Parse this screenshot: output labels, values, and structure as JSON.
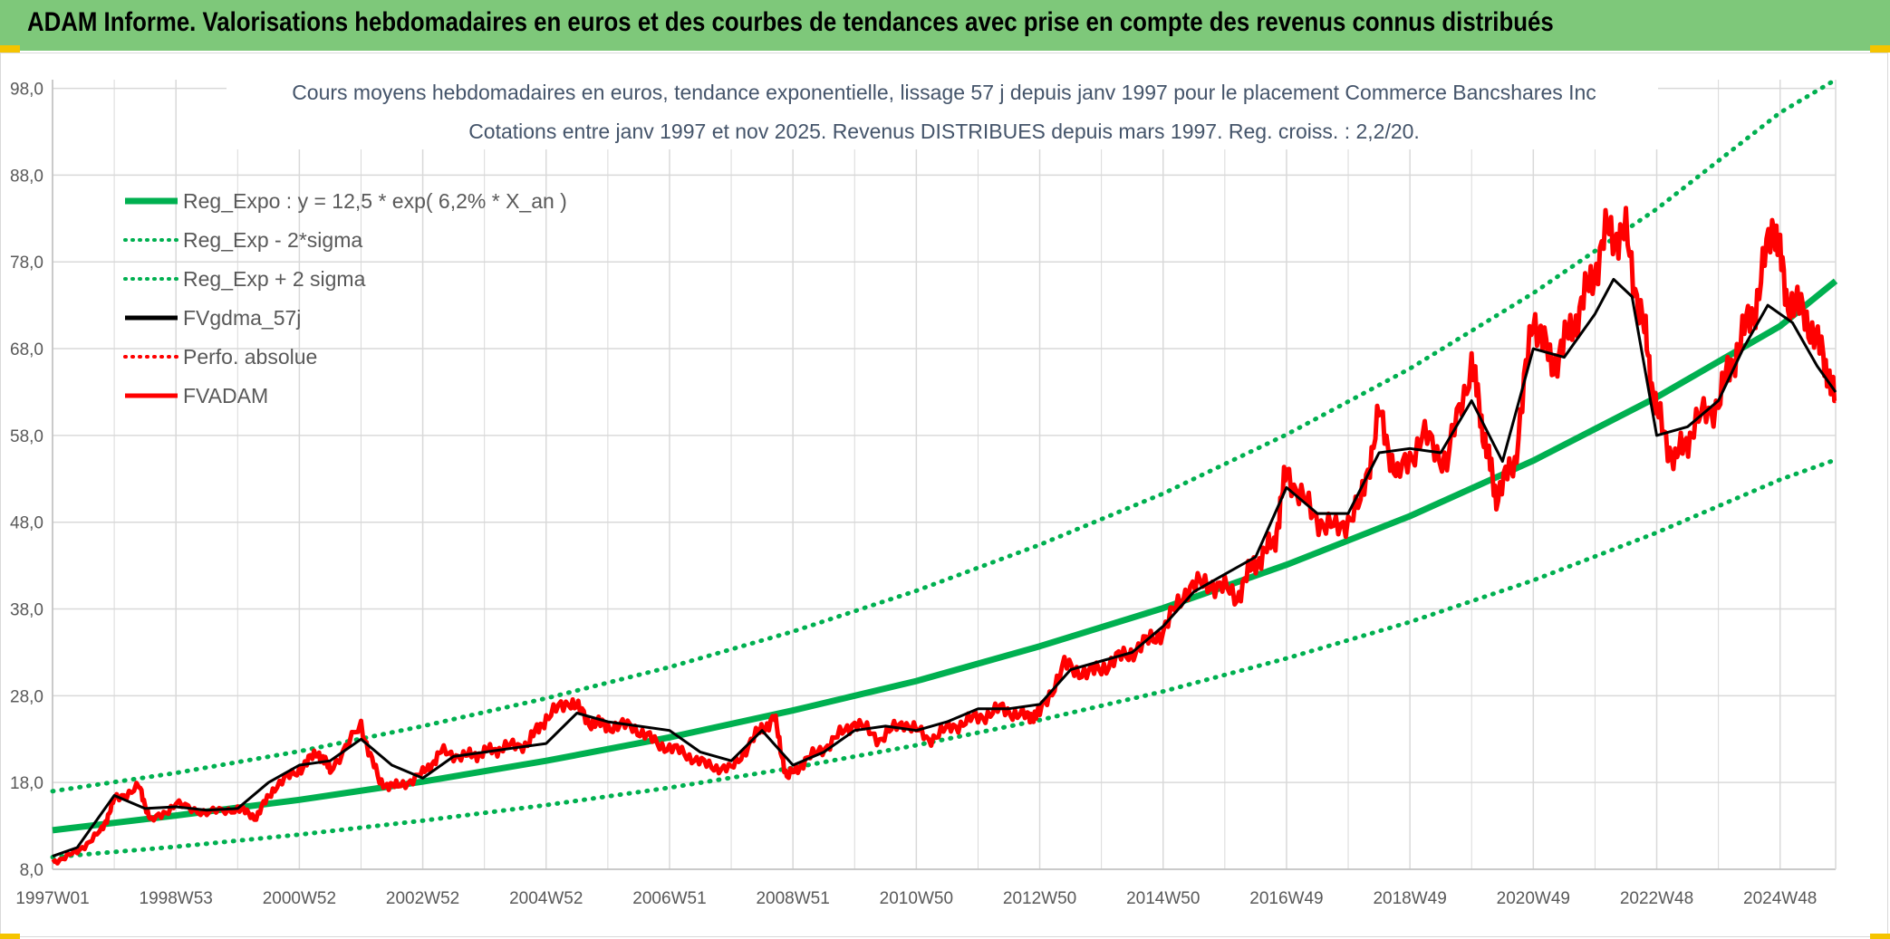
{
  "banner": {
    "title": "ADAM Informe. Valorisations hebdomadaires en euros et des courbes de tendances avec prise en compte des revenus connus distribués"
  },
  "colors": {
    "banner_bg": "#7ec87a",
    "corner_accent": "#f5c400",
    "trend_green": "#00b050",
    "gdma_black": "#000000",
    "adam_red": "#ff0000",
    "grid": "#d9d9d9",
    "title_text": "#44546a",
    "axis_text": "#595959"
  },
  "chart_data": {
    "type": "line",
    "title_line1": "Cours moyens hebdomadaires en euros, tendance exponentielle, lissage 57 j depuis janv 1997 pour le placement Commerce Bancshares Inc",
    "title_line2": "Cotations entre janv 1997 et nov 2025. Revenus DISTRIBUES depuis mars 1997. Reg. croiss. : 2,2/20.",
    "xlabel": "",
    "ylabel": "",
    "ylim": [
      8,
      100
    ],
    "xlim": [
      1997.0,
      2025.9
    ],
    "y_ticks": [
      8,
      18,
      28,
      38,
      48,
      58,
      68,
      78,
      88,
      98
    ],
    "y_tick_labels": [
      "8,0",
      "18,0",
      "28,0",
      "38,0",
      "48,0",
      "58,0",
      "68,0",
      "78,0",
      "88,0",
      "98,0"
    ],
    "x_tick_labels": [
      "1997W01",
      "1998W53",
      "2000W52",
      "2002W52",
      "2004W52",
      "2006W51",
      "2008W51",
      "2010W50",
      "2012W50",
      "2014W50",
      "2016W49",
      "2018W49",
      "2020W49",
      "2022W48",
      "2024W48"
    ],
    "x_ticks": [
      1997.0,
      1999.0,
      2001.0,
      2003.0,
      2005.0,
      2007.0,
      2009.0,
      2011.0,
      2013.0,
      2015.0,
      2017.0,
      2019.0,
      2021.0,
      2023.0,
      2025.0
    ],
    "grid": true,
    "legend_position": "top-left",
    "series": [
      {
        "name": "Reg_Expo : y = 12,5 * exp( 6,2% *  X_an )",
        "style": "solid-thick",
        "color": "#00b050",
        "x": [
          1997.0,
          1999.0,
          2001.0,
          2003.0,
          2005.0,
          2007.0,
          2009.0,
          2011.0,
          2013.0,
          2015.0,
          2017.0,
          2019.0,
          2021.0,
          2023.0,
          2025.0,
          2025.9
        ],
        "values": [
          12.5,
          14.2,
          16.0,
          18.1,
          20.5,
          23.2,
          26.3,
          29.7,
          33.7,
          38.1,
          43.1,
          48.7,
          55.1,
          62.4,
          70.6,
          75.8
        ]
      },
      {
        "name": "Reg_Exp - 2*sigma",
        "style": "dotted",
        "color": "#00b050",
        "x": [
          1997.0,
          1999.0,
          2001.0,
          2003.0,
          2005.0,
          2007.0,
          2009.0,
          2011.0,
          2013.0,
          2015.0,
          2017.0,
          2019.0,
          2021.0,
          2023.0,
          2025.0,
          2025.9
        ],
        "values": [
          9.4,
          10.6,
          12.0,
          13.6,
          15.4,
          17.4,
          19.7,
          22.3,
          25.2,
          28.5,
          32.3,
          36.5,
          41.3,
          46.8,
          52.9,
          55.2
        ]
      },
      {
        "name": "Reg_Exp + 2 sigma",
        "style": "dotted",
        "color": "#00b050",
        "x": [
          1997.0,
          1999.0,
          2001.0,
          2003.0,
          2005.0,
          2007.0,
          2009.0,
          2011.0,
          2013.0,
          2015.0,
          2017.0,
          2019.0,
          2021.0,
          2023.0,
          2025.0,
          2025.9
        ],
        "values": [
          17.0,
          19.1,
          21.6,
          24.5,
          27.7,
          31.3,
          35.4,
          40.1,
          45.4,
          51.3,
          58.1,
          65.7,
          74.4,
          84.1,
          95.2,
          100.0
        ]
      },
      {
        "name": "FVgdma_57j",
        "style": "solid",
        "color": "#000000",
        "x": [
          1997.0,
          1997.4,
          1998.0,
          1998.5,
          1999.0,
          1999.5,
          2000.0,
          2000.5,
          2001.0,
          2001.5,
          2002.0,
          2002.5,
          2003.0,
          2003.5,
          2004.0,
          2004.5,
          2005.0,
          2005.5,
          2006.0,
          2006.5,
          2007.0,
          2007.5,
          2008.0,
          2008.5,
          2009.0,
          2009.5,
          2010.0,
          2010.5,
          2011.0,
          2011.5,
          2012.0,
          2012.5,
          2013.0,
          2013.5,
          2014.0,
          2014.5,
          2015.0,
          2015.5,
          2016.0,
          2016.5,
          2017.0,
          2017.5,
          2018.0,
          2018.5,
          2019.0,
          2019.5,
          2020.0,
          2020.5,
          2021.0,
          2021.5,
          2022.0,
          2022.3,
          2022.6,
          2023.0,
          2023.5,
          2024.0,
          2024.4,
          2024.8,
          2025.2,
          2025.6,
          2025.9
        ],
        "values": [
          9.5,
          10.5,
          16.5,
          15.0,
          15.2,
          14.8,
          15.0,
          18.0,
          20.0,
          20.5,
          23.0,
          20.0,
          18.5,
          21.0,
          21.5,
          22.0,
          22.5,
          26.0,
          25.0,
          24.5,
          24.0,
          21.5,
          20.5,
          24.0,
          20.0,
          21.5,
          24.0,
          24.5,
          24.0,
          25.0,
          26.5,
          26.5,
          27.0,
          31.0,
          32.0,
          33.0,
          36.0,
          40.0,
          42.0,
          44.0,
          52.0,
          49.0,
          49.0,
          56.0,
          56.5,
          56.0,
          62.0,
          55.0,
          68.0,
          67.0,
          72.0,
          76.0,
          74.0,
          58.0,
          59.0,
          62.0,
          68.0,
          73.0,
          71.0,
          66.0,
          63.0
        ]
      },
      {
        "name": "Perfo. absolue",
        "style": "dotted",
        "color": "#ff0000",
        "x": [],
        "values": []
      },
      {
        "name": "FVADAM",
        "style": "solid-thick",
        "color": "#ff0000",
        "x": [
          1997.0,
          1997.4,
          1997.8,
          1998.0,
          1998.4,
          1998.6,
          1999.0,
          1999.5,
          2000.0,
          2000.3,
          2000.6,
          2001.0,
          2001.3,
          2001.5,
          2002.0,
          2002.3,
          2002.6,
          2003.0,
          2003.3,
          2003.7,
          2004.0,
          2004.3,
          2004.7,
          2005.0,
          2005.4,
          2005.7,
          2006.0,
          2006.4,
          2006.8,
          2007.2,
          2007.6,
          2008.0,
          2008.4,
          2008.7,
          2008.9,
          2009.2,
          2009.6,
          2010.0,
          2010.4,
          2010.8,
          2011.2,
          2011.6,
          2012.0,
          2012.4,
          2012.8,
          2013.0,
          2013.4,
          2013.8,
          2014.2,
          2014.6,
          2015.0,
          2015.4,
          2015.8,
          2016.2,
          2016.5,
          2016.8,
          2017.0,
          2017.4,
          2017.8,
          2018.2,
          2018.5,
          2018.8,
          2019.2,
          2019.6,
          2020.0,
          2020.2,
          2020.4,
          2020.7,
          2021.0,
          2021.3,
          2021.6,
          2021.9,
          2022.2,
          2022.5,
          2022.8,
          2023.0,
          2023.3,
          2023.6,
          2024.0,
          2024.3,
          2024.6,
          2024.9,
          2025.1,
          2025.4,
          2025.7,
          2025.9
        ],
        "values": [
          8.8,
          10.0,
          12.5,
          16.0,
          17.5,
          13.5,
          15.5,
          14.5,
          15.0,
          14.0,
          17.5,
          19.5,
          21.5,
          19.5,
          24.5,
          18.0,
          17.5,
          19.0,
          21.5,
          21.0,
          21.5,
          22.0,
          22.5,
          25.5,
          27.5,
          25.0,
          24.5,
          24.5,
          22.5,
          21.5,
          20.0,
          19.5,
          23.5,
          25.5,
          18.5,
          20.5,
          22.5,
          25.0,
          23.0,
          25.0,
          23.0,
          24.5,
          25.5,
          26.5,
          25.5,
          26.0,
          31.5,
          30.5,
          32.0,
          33.5,
          35.5,
          40.5,
          41.0,
          39.5,
          43.5,
          45.5,
          54.0,
          49.0,
          47.0,
          50.0,
          60.5,
          53.0,
          58.0,
          55.0,
          66.5,
          58.0,
          51.0,
          55.0,
          72.0,
          66.0,
          70.0,
          75.0,
          81.5,
          81.0,
          70.0,
          60.5,
          55.0,
          59.0,
          62.0,
          68.0,
          73.0,
          83.0,
          74.0,
          72.0,
          67.0,
          62.0
        ]
      }
    ]
  }
}
